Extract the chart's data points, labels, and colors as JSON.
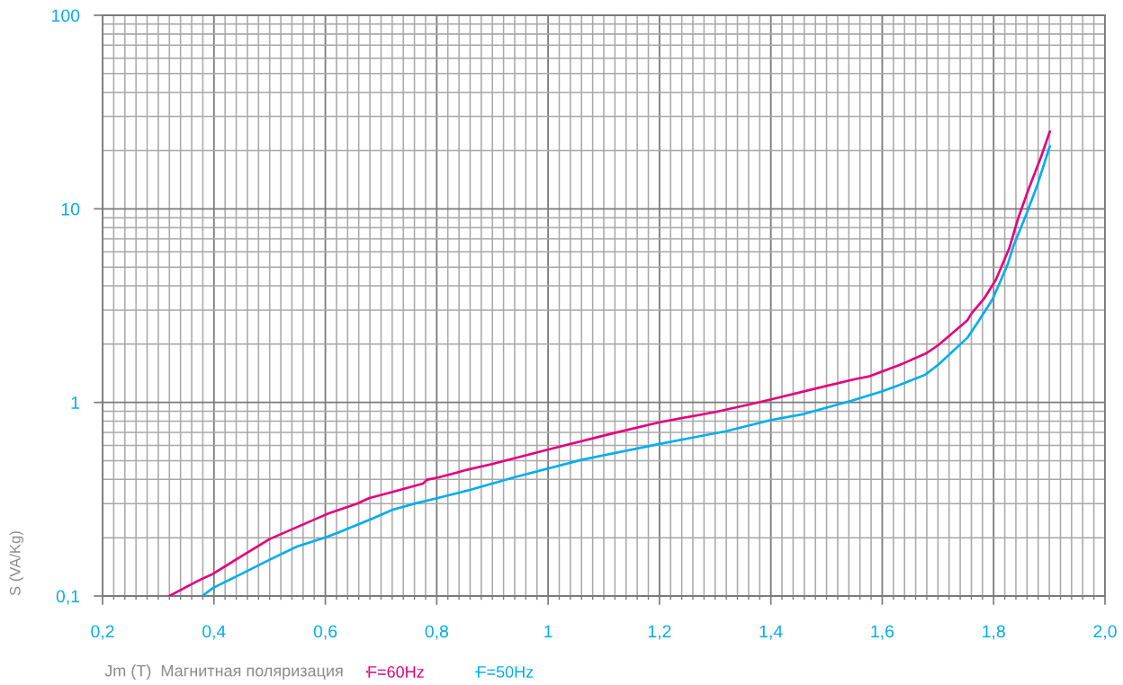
{
  "chart_data": {
    "type": "line",
    "xlabel": "Jm (T)  Магнитная поляризация",
    "ylabel": "S (VA/Kg)",
    "series": [
      {
        "name": "F=60Hz",
        "color": "#e6007e",
        "x": [
          0.32,
          0.352,
          0.377,
          0.398,
          0.447,
          0.5,
          0.549,
          0.603,
          0.657,
          0.678,
          0.716,
          0.775,
          0.783,
          0.802,
          0.856,
          0.899,
          1.007,
          1.114,
          1.2,
          1.303,
          1.384,
          1.491,
          1.551,
          1.575,
          1.631,
          1.642,
          1.68,
          1.701,
          1.753,
          1.761,
          1.782,
          1.804,
          1.828,
          1.844,
          1.863,
          1.885,
          1.901
        ],
        "values": [
          0.1,
          0.112,
          0.122,
          0.13,
          0.159,
          0.197,
          0.227,
          0.265,
          0.3,
          0.32,
          0.342,
          0.381,
          0.399,
          0.409,
          0.45,
          0.48,
          0.578,
          0.69,
          0.79,
          0.896,
          1.01,
          1.2,
          1.32,
          1.36,
          1.56,
          1.61,
          1.8,
          1.98,
          2.66,
          2.9,
          3.41,
          4.3,
          6.25,
          8.93,
          12.7,
          18.5,
          25.1
        ]
      },
      {
        "name": "F=50Hz",
        "color": "#00aeef",
        "x": [
          0.379,
          0.398,
          0.447,
          0.5,
          0.549,
          0.603,
          0.624,
          0.684,
          0.721,
          0.764,
          0.797,
          0.861,
          0.942,
          1.061,
          1.2,
          1.319,
          1.4,
          1.459,
          1.545,
          1.599,
          1.631,
          1.677,
          1.701,
          1.753,
          1.774,
          1.798,
          1.825,
          1.836,
          1.858,
          1.879,
          1.901
        ],
        "values": [
          0.1,
          0.11,
          0.129,
          0.154,
          0.18,
          0.202,
          0.213,
          0.251,
          0.279,
          0.302,
          0.318,
          0.354,
          0.412,
          0.506,
          0.61,
          0.71,
          0.811,
          0.871,
          1.02,
          1.14,
          1.23,
          1.39,
          1.57,
          2.16,
          2.66,
          3.41,
          5.14,
          6.48,
          9.25,
          13.4,
          21.1
        ]
      }
    ],
    "xlim": [
      0.2,
      2.0
    ],
    "ylim": [
      0.1,
      100
    ],
    "log": "y",
    "xticks": [
      {
        "value": 0.2,
        "label": "0,2"
      },
      {
        "value": 0.22,
        "label": null
      },
      {
        "value": 0.24,
        "label": null
      },
      {
        "value": 0.26,
        "label": null
      },
      {
        "value": 0.28,
        "label": null
      },
      {
        "value": 0.3,
        "label": null
      },
      {
        "value": 0.32,
        "label": null
      },
      {
        "value": 0.34,
        "label": null
      },
      {
        "value": 0.36,
        "label": null
      },
      {
        "value": 0.38,
        "label": null
      },
      {
        "value": 0.4,
        "label": "0,4"
      },
      {
        "value": 0.42,
        "label": null
      },
      {
        "value": 0.44,
        "label": null
      },
      {
        "value": 0.46,
        "label": null
      },
      {
        "value": 0.48,
        "label": null
      },
      {
        "value": 0.5,
        "label": null
      },
      {
        "value": 0.52,
        "label": null
      },
      {
        "value": 0.54,
        "label": null
      },
      {
        "value": 0.56,
        "label": null
      },
      {
        "value": 0.58,
        "label": null
      },
      {
        "value": 0.6,
        "label": "0,6"
      },
      {
        "value": 0.62,
        "label": null
      },
      {
        "value": 0.64,
        "label": null
      },
      {
        "value": 0.66,
        "label": null
      },
      {
        "value": 0.68,
        "label": null
      },
      {
        "value": 0.7,
        "label": null
      },
      {
        "value": 0.72,
        "label": null
      },
      {
        "value": 0.74,
        "label": null
      },
      {
        "value": 0.76,
        "label": null
      },
      {
        "value": 0.78,
        "label": null
      },
      {
        "value": 0.8,
        "label": "0,8"
      },
      {
        "value": 0.82,
        "label": null
      },
      {
        "value": 0.84,
        "label": null
      },
      {
        "value": 0.86,
        "label": null
      },
      {
        "value": 0.88,
        "label": null
      },
      {
        "value": 0.9,
        "label": null
      },
      {
        "value": 0.92,
        "label": null
      },
      {
        "value": 0.94,
        "label": null
      },
      {
        "value": 0.96,
        "label": null
      },
      {
        "value": 0.98,
        "label": null
      },
      1,
      {
        "value": 1.02,
        "label": null
      },
      {
        "value": 1.04,
        "label": null
      },
      {
        "value": 1.06,
        "label": null
      },
      {
        "value": 1.08,
        "label": null
      },
      {
        "value": 1.1,
        "label": null
      },
      {
        "value": 1.12,
        "label": null
      },
      {
        "value": 1.14,
        "label": null
      },
      {
        "value": 1.16,
        "label": null
      },
      {
        "value": 1.18,
        "label": null
      },
      {
        "value": 1.2,
        "label": "1,2"
      },
      {
        "value": 1.22,
        "label": null
      },
      {
        "value": 1.24,
        "label": null
      },
      {
        "value": 1.26,
        "label": null
      },
      {
        "value": 1.28,
        "label": null
      },
      {
        "value": 1.3,
        "label": null
      },
      {
        "value": 1.32,
        "label": null
      },
      {
        "value": 1.34,
        "label": null
      },
      {
        "value": 1.36,
        "label": null
      },
      {
        "value": 1.38,
        "label": null
      },
      {
        "value": 1.4,
        "label": "1,4"
      },
      {
        "value": 1.42,
        "label": null
      },
      {
        "value": 1.44,
        "label": null
      },
      {
        "value": 1.46,
        "label": null
      },
      {
        "value": 1.48,
        "label": null
      },
      {
        "value": 1.5,
        "label": null
      },
      {
        "value": 1.52,
        "label": null
      },
      {
        "value": 1.54,
        "label": null
      },
      {
        "value": 1.56,
        "label": null
      },
      {
        "value": 1.58,
        "label": null
      },
      {
        "value": 1.6,
        "label": "1,6"
      },
      {
        "value": 1.62,
        "label": null
      },
      {
        "value": 1.64,
        "label": null
      },
      {
        "value": 1.66,
        "label": null
      },
      {
        "value": 1.68,
        "label": null
      },
      {
        "value": 1.7,
        "label": null
      },
      {
        "value": 1.72,
        "label": null
      },
      {
        "value": 1.74,
        "label": null
      },
      {
        "value": 1.76,
        "label": null
      },
      {
        "value": 1.78,
        "label": null
      },
      {
        "value": 1.8,
        "label": "1,8"
      },
      {
        "value": 1.82,
        "label": null
      },
      {
        "value": 1.84,
        "label": null
      },
      {
        "value": 1.86,
        "label": null
      },
      {
        "value": 1.88,
        "label": null
      },
      {
        "value": 1.9,
        "label": null
      },
      {
        "value": 1.92,
        "label": null
      },
      {
        "value": 1.94,
        "label": null
      },
      {
        "value": 1.96,
        "label": null
      },
      {
        "value": 1.98,
        "label": null
      },
      {
        "value": 2.0,
        "label": "2,0"
      }
    ],
    "yticks": [
      {
        "value": 0.1,
        "label": "0,1"
      },
      {
        "value": 0.2,
        "label": null
      },
      {
        "value": 0.3,
        "label": null
      },
      {
        "value": 0.4,
        "label": null
      },
      {
        "value": 0.5,
        "label": null
      },
      {
        "value": 0.6,
        "label": null
      },
      {
        "value": 0.7,
        "label": null
      },
      {
        "value": 0.8,
        "label": null
      },
      {
        "value": 0.9,
        "label": null
      },
      1,
      {
        "value": 2,
        "label": null
      },
      {
        "value": 3,
        "label": null
      },
      {
        "value": 4,
        "label": null
      },
      {
        "value": 5,
        "label": null
      },
      {
        "value": 6,
        "label": null
      },
      {
        "value": 7,
        "label": null
      },
      {
        "value": 8,
        "label": null
      },
      {
        "value": 9,
        "label": null
      },
      10,
      {
        "value": 20,
        "label": null
      },
      {
        "value": 30,
        "label": null
      },
      {
        "value": 40,
        "label": null
      },
      {
        "value": 50,
        "label": null
      },
      {
        "value": 60,
        "label": null
      },
      {
        "value": 70,
        "label": null
      },
      {
        "value": 80,
        "label": null
      },
      {
        "value": 90,
        "label": null
      },
      100
    ],
    "grid": true,
    "legend": "bottom",
    "line_style": "solid"
  }
}
